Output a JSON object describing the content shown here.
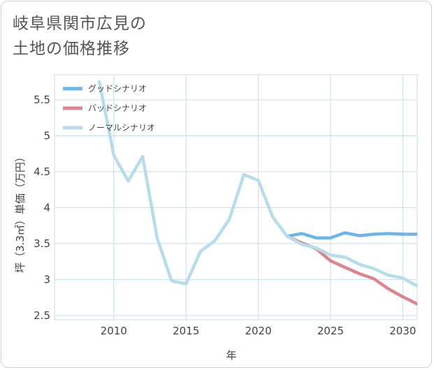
{
  "page": {
    "title_line1": "岐阜県関市広見の",
    "title_line2": "土地の価格推移"
  },
  "chart_data": {
    "type": "line",
    "title": "岐阜県関市広見の土地の価格推移",
    "xlabel": "年",
    "ylabel": "坪（3.3㎡）単価（万円）",
    "xlim": [
      2005.9,
      2031
    ],
    "ylim": [
      2.44,
      5.85
    ],
    "xticks": [
      2010,
      2015,
      2020,
      2025,
      2030
    ],
    "yticks": [
      2.5,
      3,
      3.5,
      4,
      4.5,
      5,
      5.5
    ],
    "grid": true,
    "legend_position": "top-left",
    "series": [
      {
        "name": "グッドシナリオ",
        "color": "#6fb6e8",
        "x": [
          2022,
          2023,
          2024,
          2025,
          2026,
          2027,
          2028,
          2029,
          2030,
          2031
        ],
        "values": [
          3.6,
          3.64,
          3.58,
          3.58,
          3.65,
          3.61,
          3.63,
          3.64,
          3.63,
          3.63
        ]
      },
      {
        "name": "バッドシナリオ",
        "color": "#d9868f",
        "x": [
          2022,
          2023,
          2024,
          2025,
          2026,
          2027,
          2028,
          2029,
          2030,
          2031
        ],
        "values": [
          3.6,
          3.51,
          3.43,
          3.26,
          3.17,
          3.08,
          3.01,
          2.87,
          2.76,
          2.66
        ]
      },
      {
        "name": "ノーマルシナリオ",
        "color": "#b8dcea",
        "x": [
          2009,
          2010,
          2011,
          2012,
          2013,
          2014,
          2015,
          2016,
          2017,
          2018,
          2019,
          2020,
          2021,
          2022,
          2023,
          2024,
          2025,
          2026,
          2027,
          2028,
          2029,
          2030,
          2031
        ],
        "values": [
          5.75,
          4.73,
          4.37,
          4.71,
          3.58,
          2.98,
          2.94,
          3.39,
          3.54,
          3.84,
          4.46,
          4.38,
          3.87,
          3.6,
          3.49,
          3.44,
          3.34,
          3.31,
          3.21,
          3.15,
          3.06,
          3.02,
          2.91
        ]
      }
    ]
  }
}
